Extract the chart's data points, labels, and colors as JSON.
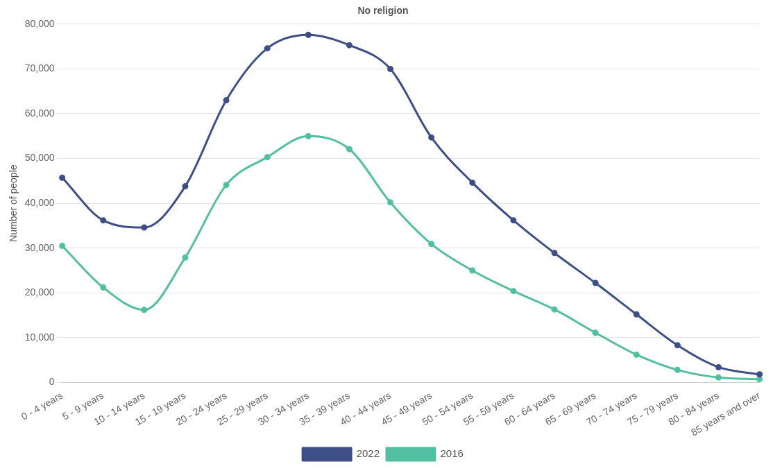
{
  "chart_data": {
    "type": "line",
    "title": "No religion",
    "ylabel": "Number of people",
    "categories": [
      "0 - 4 years",
      "5 - 9 years",
      "10 - 14 years",
      "15 - 19 years",
      "20 - 24 years",
      "25 - 29 years",
      "30 - 34 years",
      "35 - 39 years",
      "40 - 44 years",
      "45 - 49 years",
      "50 - 54 years",
      "55 - 59 years",
      "60 - 64 years",
      "65 - 69 years",
      "70 - 74 years",
      "75 - 79 years",
      "80 - 84 years",
      "85 years and over"
    ],
    "series": [
      {
        "name": "2022",
        "color": "#3d4f86",
        "values": [
          45700,
          36200,
          34600,
          43800,
          63000,
          74600,
          77600,
          75300,
          70000,
          54700,
          44600,
          36200,
          28900,
          22200,
          15200,
          8300,
          3400,
          1800
        ]
      },
      {
        "name": "2016",
        "color": "#52c0a0",
        "values": [
          30500,
          21200,
          16200,
          27900,
          44100,
          50300,
          55000,
          52100,
          40200,
          30900,
          25000,
          20400,
          16300,
          11100,
          6200,
          2800,
          1100,
          700
        ]
      }
    ],
    "ylim": [
      0,
      80000
    ],
    "yticks": [
      {
        "value": 0,
        "label": "0"
      },
      {
        "value": 10000,
        "label": "10,000"
      },
      {
        "value": 20000,
        "label": "20,000"
      },
      {
        "value": 30000,
        "label": "30,000"
      },
      {
        "value": 40000,
        "label": "40,000"
      },
      {
        "value": 50000,
        "label": "50,000"
      },
      {
        "value": 60000,
        "label": "60,000"
      },
      {
        "value": 70000,
        "label": "70,000"
      },
      {
        "value": 80000,
        "label": "80,000"
      }
    ],
    "grid": "y",
    "legend": "bottom",
    "marker": "circle",
    "line_style": "solid"
  }
}
